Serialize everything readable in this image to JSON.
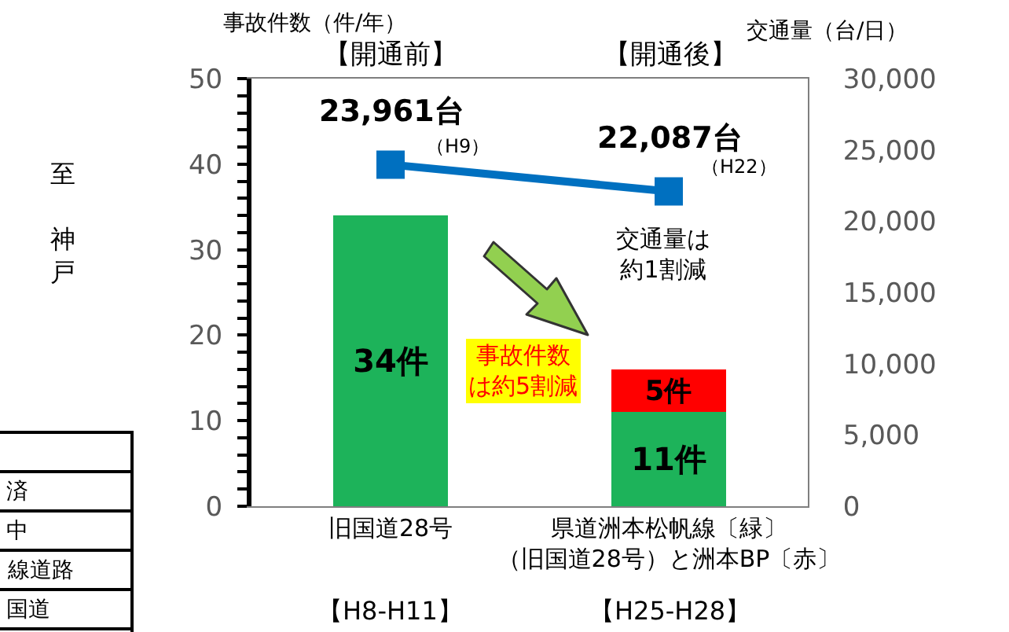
{
  "chart_data": {
    "type": "bar",
    "stacked": true,
    "categories": [
      "旧国道28号",
      "県道洲本松帆線〔緑〕（旧国道28号）と洲本BP〔赤〕"
    ],
    "series": [
      {
        "color": "#1db35a",
        "values": [
          34,
          11
        ],
        "value_labels": [
          "34件",
          "11件"
        ]
      },
      {
        "color": "#ff0000",
        "values": [
          null,
          5
        ],
        "value_labels": [
          null,
          "5件"
        ]
      },
      {
        "type": "line",
        "axis": "y2",
        "color": "#0070c0",
        "marker": "square",
        "values": [
          23961,
          22087
        ],
        "value_labels": [
          "23,961台",
          "22,087台"
        ]
      }
    ],
    "ylabel": "事故件数（件/年）",
    "y2label": "交通量（台/日）",
    "ylim": [
      0,
      50
    ],
    "yticks": [
      0,
      {
        "value": 2,
        "label": null
      },
      {
        "value": 4,
        "label": null
      },
      {
        "value": 6,
        "label": null
      },
      {
        "value": 8,
        "label": null
      },
      10,
      {
        "value": 12,
        "label": null
      },
      {
        "value": 14,
        "label": null
      },
      {
        "value": 16,
        "label": null
      },
      {
        "value": 18,
        "label": null
      },
      20,
      {
        "value": 22,
        "label": null
      },
      {
        "value": 24,
        "label": null
      },
      {
        "value": 26,
        "label": null
      },
      {
        "value": 28,
        "label": null
      },
      30,
      {
        "value": 32,
        "label": null
      },
      {
        "value": 34,
        "label": null
      },
      {
        "value": 36,
        "label": null
      },
      {
        "value": 38,
        "label": null
      },
      40,
      {
        "value": 42,
        "label": null
      },
      {
        "value": 44,
        "label": null
      },
      {
        "value": 46,
        "label": null
      },
      {
        "value": 48,
        "label": null
      },
      50
    ],
    "y2lim": [
      0,
      30000
    ],
    "y2ticks": [
      0,
      {
        "value": 5000,
        "label": "5,000"
      },
      {
        "value": 10000,
        "label": "10,000"
      },
      {
        "value": 15000,
        "label": "15,000"
      },
      {
        "value": 20000,
        "label": "20,000"
      },
      {
        "value": 25000,
        "label": "25,000"
      },
      {
        "value": 30000,
        "label": "30,000"
      }
    ],
    "annotations": [
      "【開通前】",
      "【開通後】",
      "（H9）",
      "（H22）",
      "交通量は約1割減",
      "事故件数は約5割減",
      "至神戸",
      "済",
      "中",
      "線道路",
      "国道",
      "【H8-H11】",
      "【H25-H28】"
    ],
    "grid": false
  }
}
